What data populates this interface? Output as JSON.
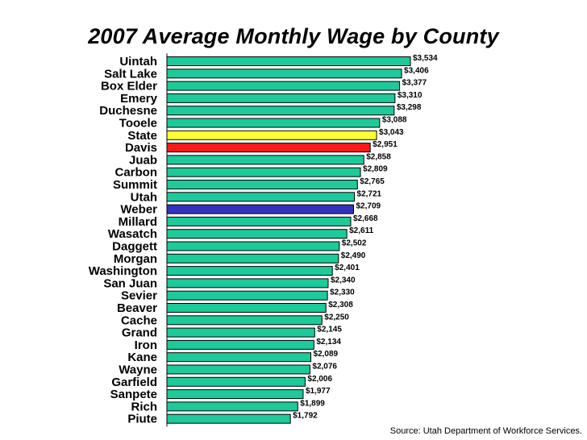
{
  "chart_data": {
    "type": "bar",
    "orientation": "horizontal",
    "title": "2007 Average Monthly Wage by County",
    "categories": [
      "Uintah",
      "Salt Lake",
      "Box Elder",
      "Emery",
      "Duchesne",
      "Tooele",
      "State",
      "Davis",
      "Juab",
      "Carbon",
      "Summit",
      "Utah",
      "Weber",
      "Millard",
      "Wasatch",
      "Daggett",
      "Morgan",
      "Washington",
      "San Juan",
      "Sevier",
      "Beaver",
      "Cache",
      "Grand",
      "Iron",
      "Kane",
      "Wayne",
      "Garfield",
      "Sanpete",
      "Rich",
      "Piute"
    ],
    "values": [
      3534,
      3406,
      3377,
      3310,
      3298,
      3088,
      3043,
      2951,
      2858,
      2809,
      2765,
      2721,
      2709,
      2668,
      2611,
      2502,
      2490,
      2401,
      2340,
      2330,
      2308,
      2250,
      2145,
      2134,
      2089,
      2076,
      2006,
      1977,
      1899,
      1792
    ],
    "value_labels": [
      "$3,534",
      "$3,406",
      "$3,377",
      "$3,310",
      "$3,298",
      "$3,088",
      "$3,043",
      "$2,951",
      "$2,858",
      "$2,809",
      "$2,765",
      "$2,721",
      "$2,709",
      "$2,668",
      "$2,611",
      "$2,502",
      "$2,490",
      "$2,401",
      "$2,340",
      "$2,330",
      "$2,308",
      "$2,250",
      "$2,145",
      "$2,134",
      "$2,089",
      "$2,076",
      "$2,006",
      "$1,977",
      "$1,899",
      "$1,792"
    ],
    "colors": [
      "#1ec99a",
      "#1ec99a",
      "#1ec99a",
      "#1ec99a",
      "#1ec99a",
      "#1ec99a",
      "#ffff33",
      "#ff1a1a",
      "#1ec99a",
      "#1ec99a",
      "#1ec99a",
      "#1ec99a",
      "#3333bb",
      "#1ec99a",
      "#1ec99a",
      "#1ec99a",
      "#1ec99a",
      "#1ec99a",
      "#1ec99a",
      "#1ec99a",
      "#1ec99a",
      "#1ec99a",
      "#1ec99a",
      "#1ec99a",
      "#1ec99a",
      "#1ec99a",
      "#1ec99a",
      "#1ec99a",
      "#1ec99a",
      "#1ec99a"
    ],
    "xlim": [
      0,
      3534
    ],
    "grid": false,
    "legend": "none"
  },
  "source": "Source: Utah Department of Workforce Services."
}
